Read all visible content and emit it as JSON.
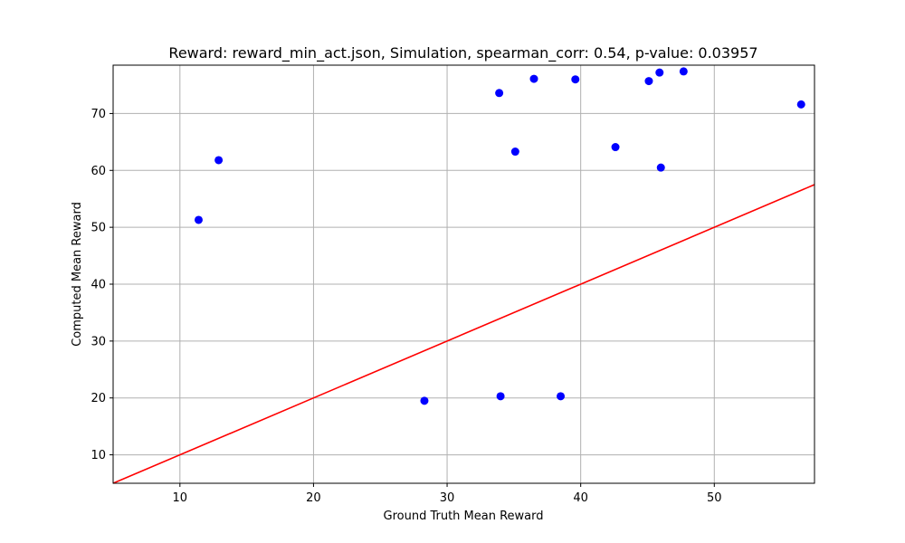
{
  "chart_data": {
    "type": "scatter",
    "title": "Reward: reward_min_act.json, Simulation, spearman_corr: 0.54, p-value: 0.03957",
    "xlabel": "Ground Truth Mean Reward",
    "ylabel": "Computed Mean Reward",
    "xlim": [
      5,
      57.5
    ],
    "ylim": [
      5,
      78.5
    ],
    "xticks": [
      10,
      20,
      30,
      40,
      50
    ],
    "yticks": [
      10,
      20,
      30,
      40,
      50,
      60,
      70
    ],
    "grid": true,
    "points": [
      {
        "x": 11.4,
        "y": 51.3
      },
      {
        "x": 12.9,
        "y": 61.8
      },
      {
        "x": 28.3,
        "y": 19.5
      },
      {
        "x": 33.9,
        "y": 73.6
      },
      {
        "x": 34.0,
        "y": 20.3
      },
      {
        "x": 35.1,
        "y": 63.3
      },
      {
        "x": 36.5,
        "y": 76.1
      },
      {
        "x": 38.5,
        "y": 20.3
      },
      {
        "x": 39.6,
        "y": 76.0
      },
      {
        "x": 42.6,
        "y": 64.1
      },
      {
        "x": 45.1,
        "y": 75.7
      },
      {
        "x": 45.9,
        "y": 77.2
      },
      {
        "x": 46.0,
        "y": 60.5
      },
      {
        "x": 47.7,
        "y": 77.4
      },
      {
        "x": 56.5,
        "y": 71.6
      }
    ],
    "reference_line": {
      "x": [
        5,
        57.5
      ],
      "y": [
        5,
        57.5
      ]
    },
    "colors": {
      "points": "#0000ff",
      "line": "#ff0000",
      "grid": "#b0b0b0",
      "axes": "#000000"
    }
  }
}
